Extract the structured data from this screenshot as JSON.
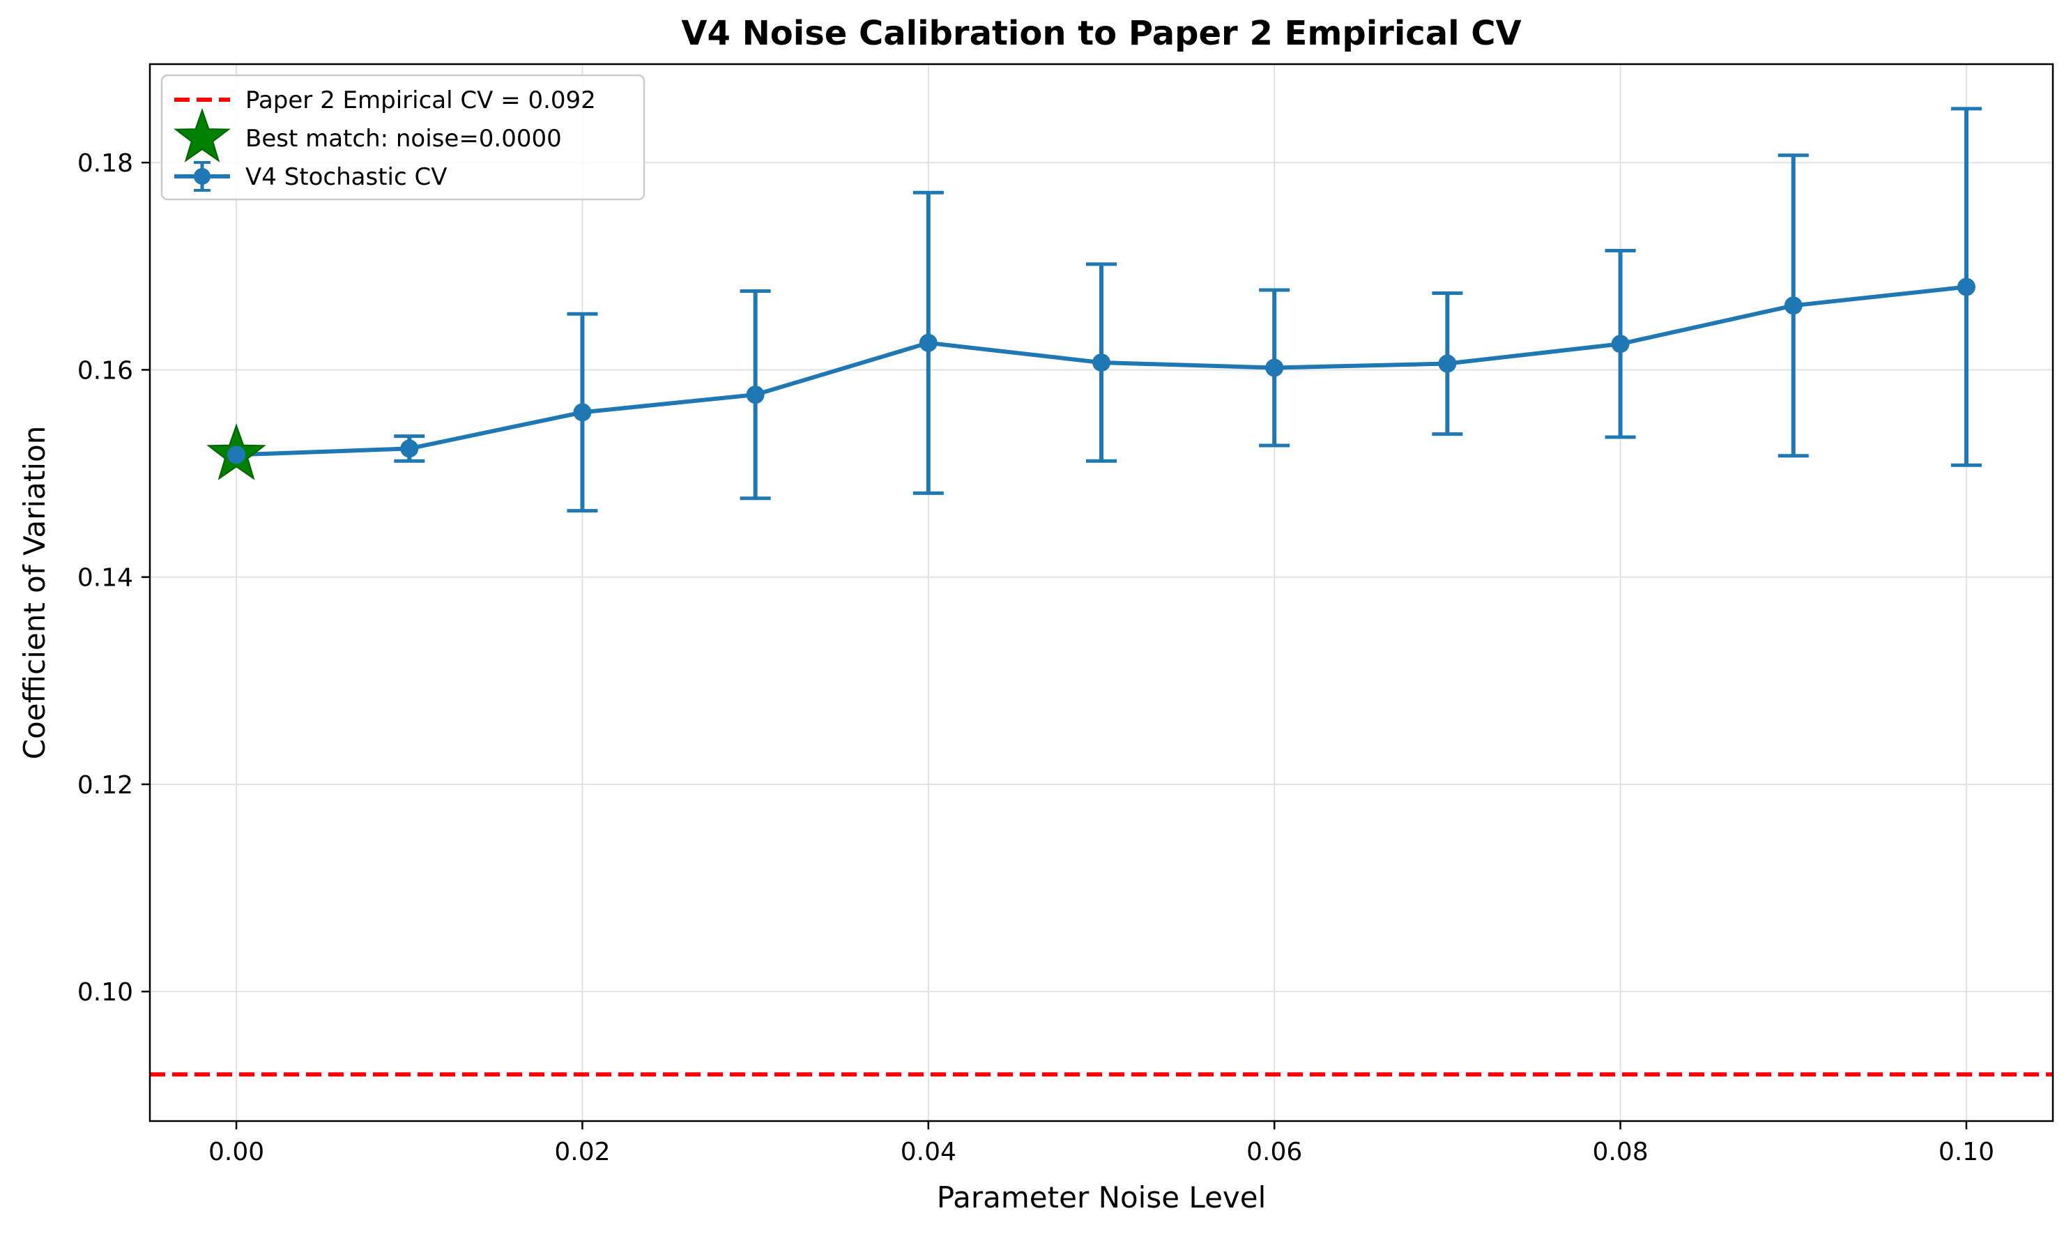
{
  "chart_data": {
    "type": "line",
    "title": "V4 Noise Calibration to Paper 2 Empirical CV",
    "xlabel": "Parameter Noise Level",
    "ylabel": "Coefficient of Variation",
    "xlim": [
      -0.005,
      0.105
    ],
    "ylim": [
      0.0875,
      0.1895
    ],
    "xticks": [
      0.0,
      0.02,
      0.04,
      0.06,
      0.08,
      0.1
    ],
    "xtick_labels": [
      "0.00",
      "0.02",
      "0.04",
      "0.06",
      "0.08",
      "0.10"
    ],
    "yticks": [
      0.1,
      0.12,
      0.14,
      0.16,
      0.18
    ],
    "ytick_labels": [
      "0.10",
      "0.12",
      "0.14",
      "0.16",
      "0.18"
    ],
    "grid": true,
    "legend_position": "top-left",
    "series": [
      {
        "name": "V4 Stochastic CV",
        "color": "#1f77b4",
        "marker": "circle",
        "x": [
          0.0,
          0.01,
          0.02,
          0.03,
          0.04,
          0.05,
          0.06,
          0.07,
          0.08,
          0.09,
          0.1
        ],
        "y": [
          0.1518,
          0.1524,
          0.1559,
          0.1576,
          0.1626,
          0.1607,
          0.1602,
          0.1606,
          0.1625,
          0.1662,
          0.168
        ],
        "err": [
          0.0,
          0.0012,
          0.0095,
          0.01,
          0.0145,
          0.0095,
          0.0075,
          0.0068,
          0.009,
          0.0145,
          0.0172
        ]
      }
    ],
    "reference_line": {
      "name": "Paper 2 Empirical CV = 0.092",
      "y": 0.092,
      "color": "#ff0000",
      "style": "dashed"
    },
    "highlight_point": {
      "name": "Best match: noise=0.0000",
      "x": 0.0,
      "y": 0.1518,
      "color": "#008000",
      "marker": "star"
    }
  }
}
